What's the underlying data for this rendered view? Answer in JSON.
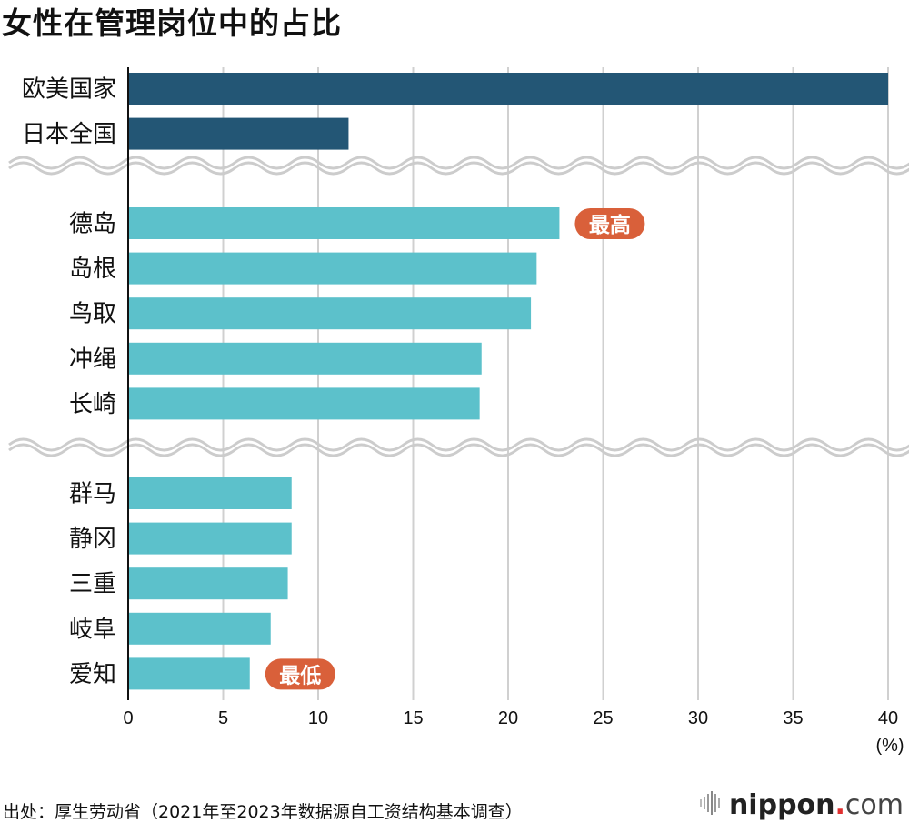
{
  "title": "女性在管理岗位中的占比",
  "source": "出处：厚生劳动省（2021年至2023年数据源自工资结构基本调查）",
  "logo": {
    "main": "nippon",
    "dot": ".",
    "suffix": "com"
  },
  "chart_data": {
    "type": "bar",
    "orientation": "horizontal",
    "title": "女性在管理岗位中的占比",
    "xlabel": "",
    "unit_label": "(%)",
    "xlim": [
      0,
      40
    ],
    "xticks": [
      0,
      5,
      10,
      15,
      20,
      25,
      30,
      35,
      40
    ],
    "grid": true,
    "groups": [
      {
        "name": "reference",
        "color": "#235675",
        "categories": [
          "欧美国家",
          "日本全国"
        ],
        "values": [
          40,
          11.6
        ]
      },
      {
        "name": "top5",
        "color": "#5cc1cb",
        "categories": [
          "德岛",
          "岛根",
          "鸟取",
          "冲绳",
          "长崎"
        ],
        "values": [
          22.7,
          21.5,
          21.2,
          18.6,
          18.5
        ]
      },
      {
        "name": "bottom5",
        "color": "#5cc1cb",
        "categories": [
          "群马",
          "静冈",
          "三重",
          "岐阜",
          "爱知"
        ],
        "values": [
          8.6,
          8.6,
          8.4,
          7.5,
          6.4
        ]
      }
    ],
    "annotations": [
      {
        "category": "德岛",
        "text": "最高",
        "color": "#d9603a"
      },
      {
        "category": "爱知",
        "text": "最低",
        "color": "#d9603a"
      }
    ],
    "axis_break_color": "#cccccc"
  }
}
